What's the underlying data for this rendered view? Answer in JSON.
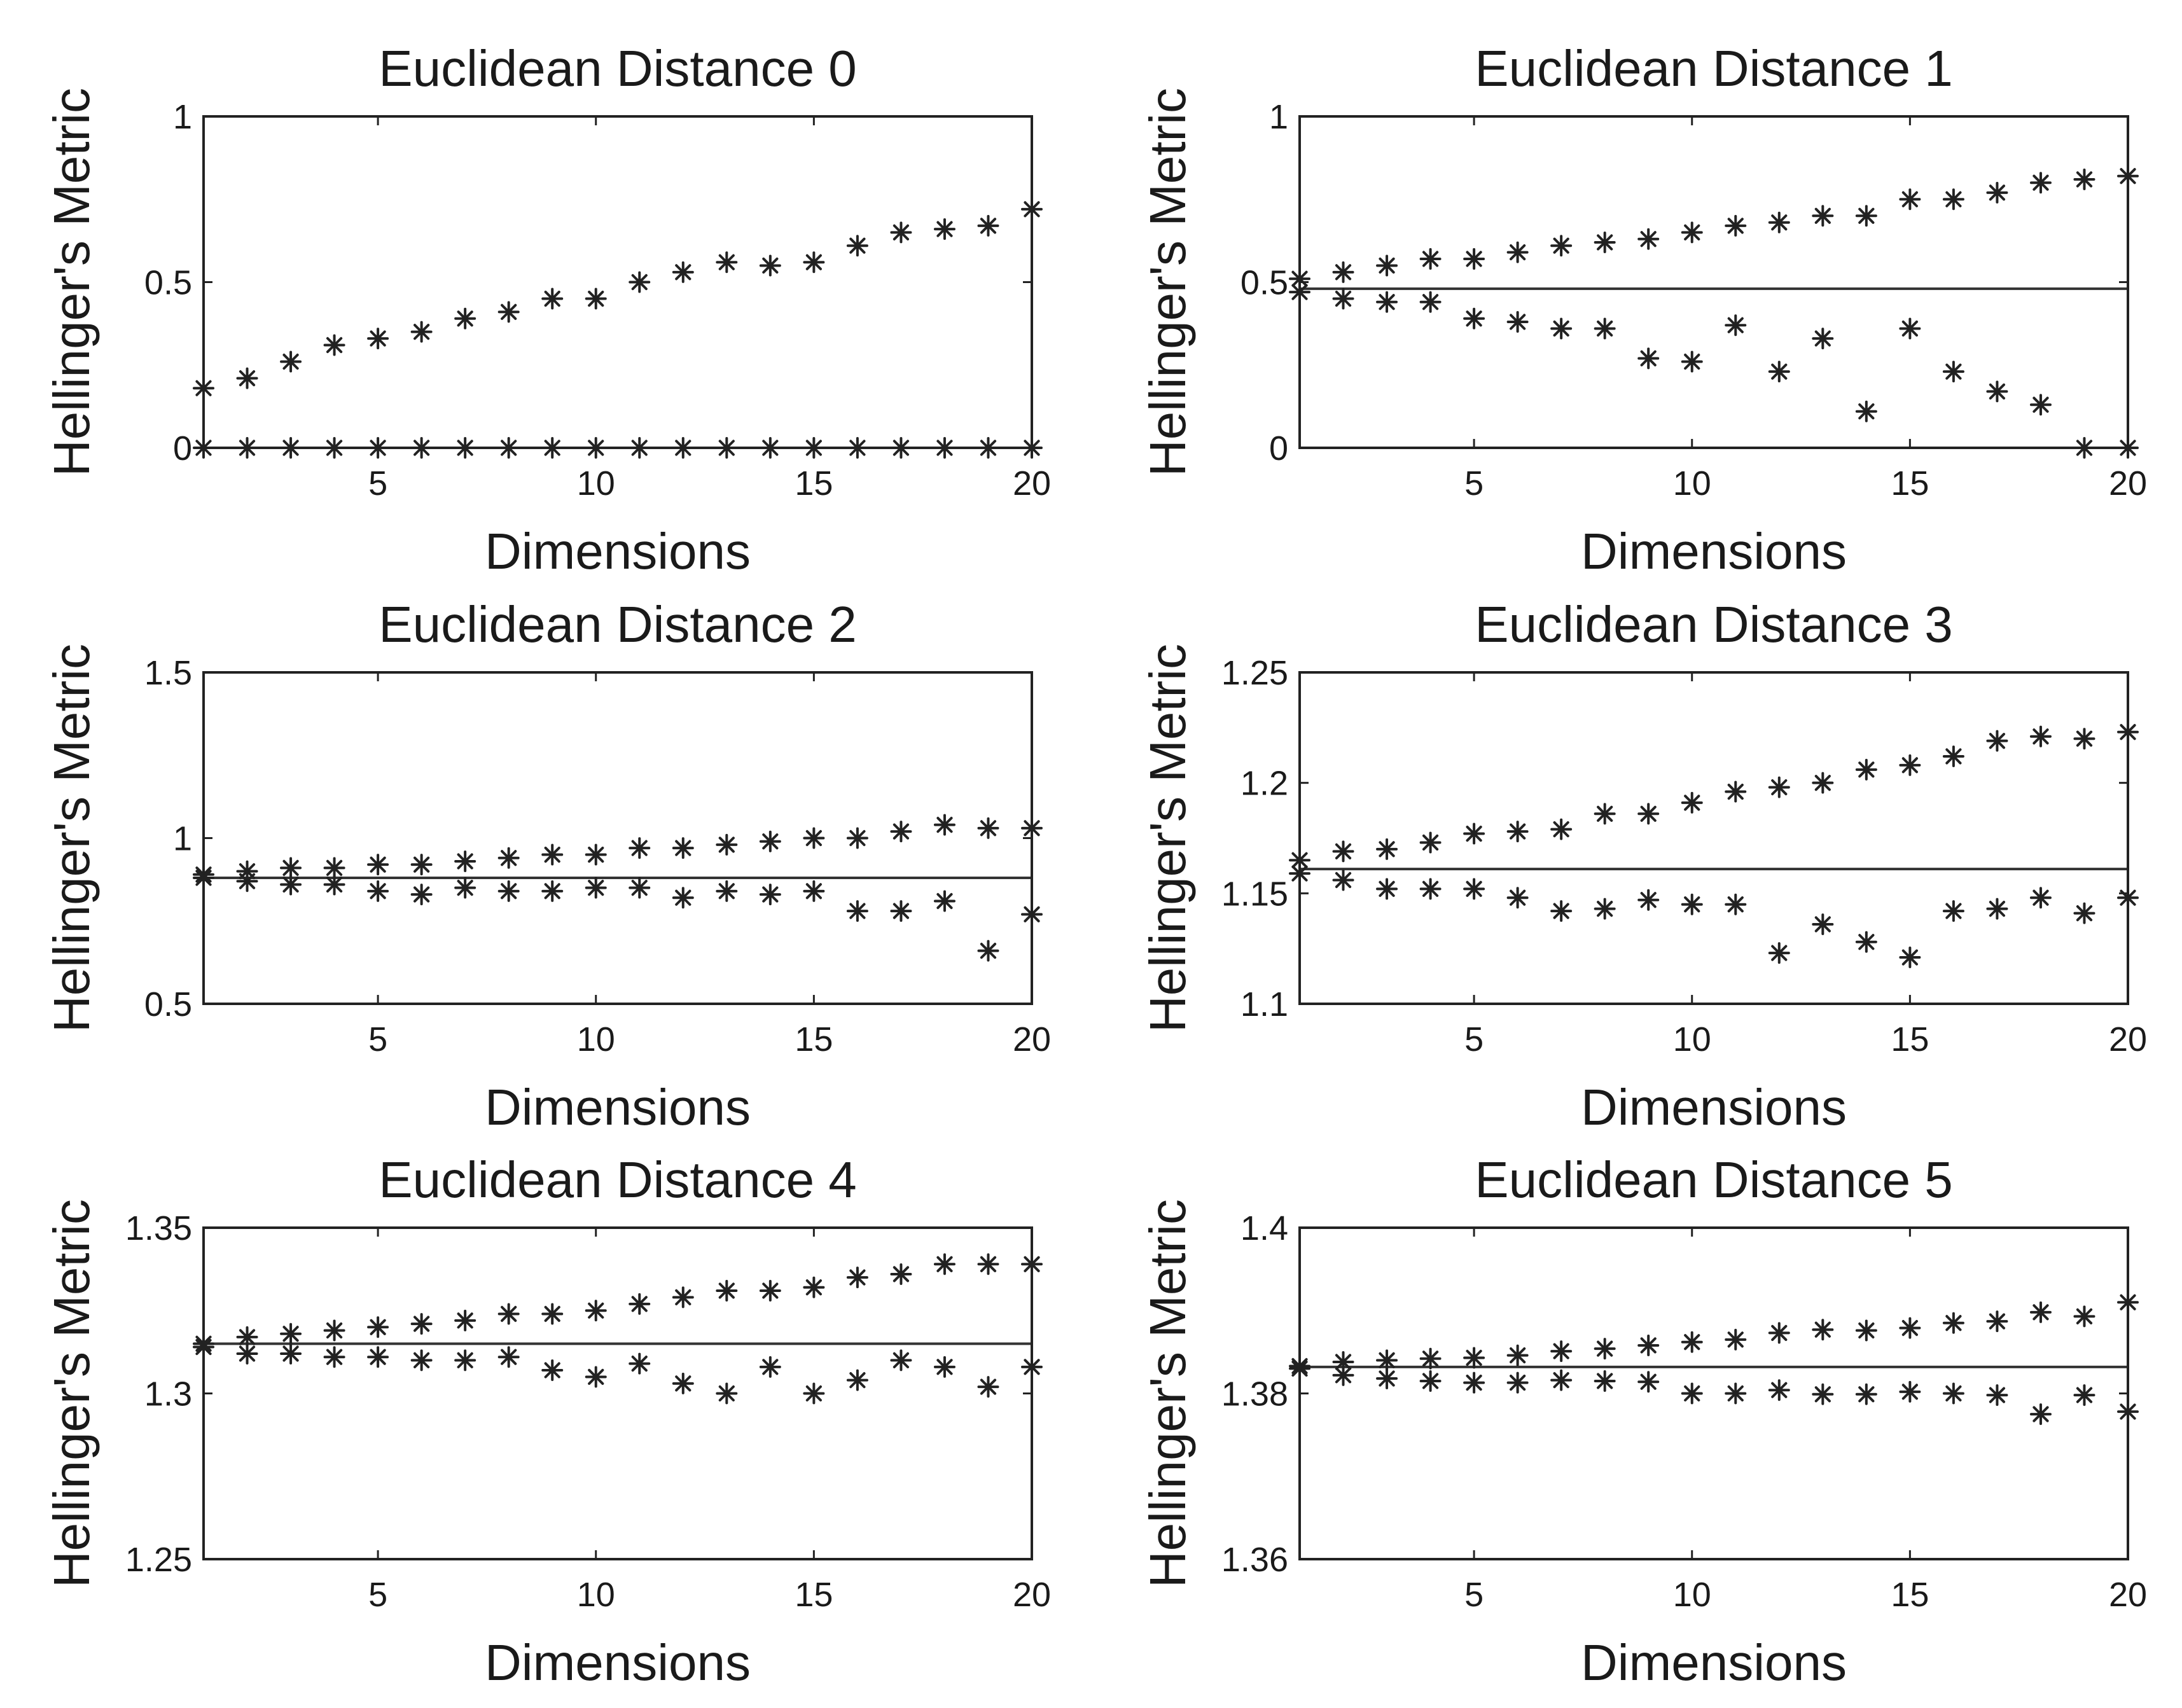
{
  "figure": {
    "background": "#ffffff",
    "ink": "#222222"
  },
  "chart_data": [
    {
      "type": "scatter",
      "title": "Euclidean Distance 0",
      "xlabel": "Dimensions",
      "ylabel": "Hellinger's Metric",
      "xlim": [
        1,
        20
      ],
      "ylim": [
        0,
        1
      ],
      "xticks": [
        5,
        10,
        15,
        20
      ],
      "yticks": [
        0,
        0.5,
        1
      ],
      "ytick_labels": [
        "0",
        "0.5",
        "1"
      ],
      "marker": "asterisk",
      "reference_line": 0,
      "x": [
        1,
        2,
        3,
        4,
        5,
        6,
        7,
        8,
        9,
        10,
        11,
        12,
        13,
        14,
        15,
        16,
        17,
        18,
        19,
        20
      ],
      "series": [
        {
          "name": "upper",
          "values": [
            0.18,
            0.21,
            0.26,
            0.31,
            0.33,
            0.35,
            0.39,
            0.41,
            0.45,
            0.45,
            0.5,
            0.53,
            0.56,
            0.55,
            0.56,
            0.61,
            0.65,
            0.66,
            0.67,
            0.72
          ]
        },
        {
          "name": "lower",
          "values": [
            0,
            0,
            0,
            0,
            0,
            0,
            0,
            0,
            0,
            0,
            0,
            0,
            0,
            0,
            0,
            0,
            0,
            0,
            0,
            0
          ]
        }
      ]
    },
    {
      "type": "scatter",
      "title": "Euclidean Distance 1",
      "xlabel": "Dimensions",
      "ylabel": "Hellinger's Metric",
      "xlim": [
        1,
        20
      ],
      "ylim": [
        0,
        1
      ],
      "xticks": [
        5,
        10,
        15,
        20
      ],
      "yticks": [
        0,
        0.5,
        1
      ],
      "ytick_labels": [
        "0",
        "0.5",
        "1"
      ],
      "marker": "asterisk",
      "reference_line": 0.48,
      "x": [
        1,
        2,
        3,
        4,
        5,
        6,
        7,
        8,
        9,
        10,
        11,
        12,
        13,
        14,
        15,
        16,
        17,
        18,
        19,
        20
      ],
      "series": [
        {
          "name": "upper",
          "values": [
            0.51,
            0.53,
            0.55,
            0.57,
            0.57,
            0.59,
            0.61,
            0.62,
            0.63,
            0.65,
            0.67,
            0.68,
            0.7,
            0.7,
            0.75,
            0.75,
            0.77,
            0.8,
            0.81,
            0.82
          ]
        },
        {
          "name": "lower",
          "values": [
            0.47,
            0.45,
            0.44,
            0.44,
            0.39,
            0.38,
            0.36,
            0.36,
            0.27,
            0.26,
            0.37,
            0.23,
            0.33,
            0.11,
            0.36,
            0.23,
            0.17,
            0.13,
            0.0,
            0.0
          ]
        }
      ]
    },
    {
      "type": "scatter",
      "title": "Euclidean Distance 2",
      "xlabel": "Dimensions",
      "ylabel": "Hellinger's Metric",
      "xlim": [
        1,
        20
      ],
      "ylim": [
        0.5,
        1.5
      ],
      "xticks": [
        5,
        10,
        15,
        20
      ],
      "yticks": [
        0.5,
        1,
        1.5
      ],
      "ytick_labels": [
        "0.5",
        "1",
        "1.5"
      ],
      "marker": "asterisk",
      "reference_line": 0.88,
      "x": [
        1,
        2,
        3,
        4,
        5,
        6,
        7,
        8,
        9,
        10,
        11,
        12,
        13,
        14,
        15,
        16,
        17,
        18,
        19,
        20
      ],
      "series": [
        {
          "name": "upper",
          "values": [
            0.89,
            0.9,
            0.91,
            0.91,
            0.92,
            0.92,
            0.93,
            0.94,
            0.95,
            0.95,
            0.97,
            0.97,
            0.98,
            0.99,
            1.0,
            1.0,
            1.02,
            1.04,
            1.03,
            1.03
          ]
        },
        {
          "name": "lower",
          "values": [
            0.88,
            0.87,
            0.86,
            0.86,
            0.84,
            0.83,
            0.85,
            0.84,
            0.84,
            0.85,
            0.85,
            0.82,
            0.84,
            0.83,
            0.84,
            0.78,
            0.78,
            0.81,
            0.66,
            0.77
          ]
        }
      ]
    },
    {
      "type": "scatter",
      "title": "Euclidean Distance 3",
      "xlabel": "Dimensions",
      "ylabel": "Hellinger's Metric",
      "xlim": [
        1,
        20
      ],
      "ylim": [
        1.1,
        1.25
      ],
      "xticks": [
        5,
        10,
        15,
        20
      ],
      "yticks": [
        1.1,
        1.15,
        1.2,
        1.25
      ],
      "ytick_labels": [
        "1.1",
        "1.15",
        "1.2",
        "1.25"
      ],
      "marker": "asterisk",
      "reference_line": 1.161,
      "x": [
        1,
        2,
        3,
        4,
        5,
        6,
        7,
        8,
        9,
        10,
        11,
        12,
        13,
        14,
        15,
        16,
        17,
        18,
        19,
        20
      ],
      "series": [
        {
          "name": "upper",
          "values": [
            1.165,
            1.169,
            1.17,
            1.173,
            1.177,
            1.178,
            1.179,
            1.186,
            1.186,
            1.191,
            1.196,
            1.198,
            1.2,
            1.206,
            1.208,
            1.212,
            1.219,
            1.221,
            1.22,
            1.223
          ]
        },
        {
          "name": "lower",
          "values": [
            1.159,
            1.156,
            1.152,
            1.152,
            1.152,
            1.148,
            1.142,
            1.143,
            1.147,
            1.145,
            1.145,
            1.123,
            1.136,
            1.128,
            1.121,
            1.142,
            1.143,
            1.148,
            1.141,
            1.148
          ]
        }
      ]
    },
    {
      "type": "scatter",
      "title": "Euclidean Distance 4",
      "xlabel": "Dimensions",
      "ylabel": "Hellinger's Metric",
      "xlim": [
        1,
        20
      ],
      "ylim": [
        1.25,
        1.35
      ],
      "xticks": [
        5,
        10,
        15,
        20
      ],
      "yticks": [
        1.25,
        1.3,
        1.35
      ],
      "ytick_labels": [
        "1.25",
        "1.3",
        "1.35"
      ],
      "marker": "asterisk",
      "reference_line": 1.315,
      "x": [
        1,
        2,
        3,
        4,
        5,
        6,
        7,
        8,
        9,
        10,
        11,
        12,
        13,
        14,
        15,
        16,
        17,
        18,
        19,
        20
      ],
      "series": [
        {
          "name": "upper",
          "values": [
            1.315,
            1.317,
            1.318,
            1.319,
            1.32,
            1.321,
            1.322,
            1.324,
            1.324,
            1.325,
            1.327,
            1.329,
            1.331,
            1.331,
            1.332,
            1.335,
            1.336,
            1.339,
            1.339,
            1.339
          ]
        },
        {
          "name": "lower",
          "values": [
            1.314,
            1.312,
            1.312,
            1.311,
            1.311,
            1.31,
            1.31,
            1.311,
            1.307,
            1.305,
            1.309,
            1.303,
            1.3,
            1.308,
            1.3,
            1.304,
            1.31,
            1.308,
            1.302,
            1.308
          ]
        }
      ]
    },
    {
      "type": "scatter",
      "title": "Euclidean Distance 5",
      "xlabel": "Dimensions",
      "ylabel": "Hellinger's Metric",
      "xlim": [
        1,
        20
      ],
      "ylim": [
        1.36,
        1.4
      ],
      "xticks": [
        5,
        10,
        15,
        20
      ],
      "yticks": [
        1.36,
        1.38,
        1.4
      ],
      "ytick_labels": [
        "1.36",
        "1.38",
        "1.4"
      ],
      "marker": "asterisk",
      "reference_line": 1.3832,
      "x": [
        1,
        2,
        3,
        4,
        5,
        6,
        7,
        8,
        9,
        10,
        11,
        12,
        13,
        14,
        15,
        16,
        17,
        18,
        19,
        20
      ],
      "series": [
        {
          "name": "upper",
          "values": [
            1.3833,
            1.3838,
            1.384,
            1.3842,
            1.3843,
            1.3846,
            1.3851,
            1.3854,
            1.3858,
            1.3862,
            1.3865,
            1.3873,
            1.3877,
            1.3876,
            1.3879,
            1.3885,
            1.3887,
            1.3898,
            1.3893,
            1.391
          ]
        },
        {
          "name": "lower",
          "values": [
            1.383,
            1.3822,
            1.3818,
            1.3815,
            1.3813,
            1.3813,
            1.3816,
            1.3815,
            1.3814,
            1.38,
            1.38,
            1.3804,
            1.3799,
            1.3799,
            1.3802,
            1.38,
            1.3798,
            1.3775,
            1.3798,
            1.3778
          ]
        }
      ]
    }
  ]
}
